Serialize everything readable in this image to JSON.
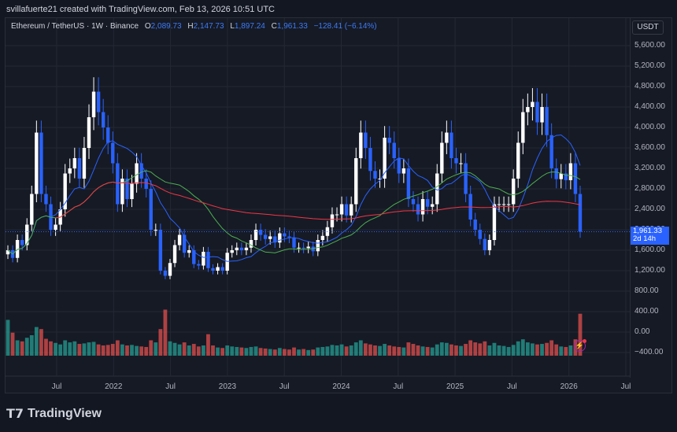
{
  "header": {
    "attribution": "svillafuerte21 created with TradingView.com, Feb 13, 2026 10:51 UTC"
  },
  "legend": {
    "symbol": "Ethereum / TetherUS · 1W · Binance",
    "o_label": "O",
    "o": "2,089.73",
    "h_label": "H",
    "h": "2,147.73",
    "l_label": "L",
    "l": "1,897.24",
    "c_label": "C",
    "c": "1,961.33",
    "change": "−128.41 (−6.14%)"
  },
  "axis": {
    "currency": "USDT",
    "y_ticks": [
      "5,600.00",
      "5,200.00",
      "4,800.00",
      "4,400.00",
      "4,000.00",
      "3,600.00",
      "3,200.00",
      "2,800.00",
      "2,400.00",
      "2,000.00",
      "1,600.00",
      "1,200.00",
      "800.00",
      "400.00",
      "0.00",
      "−400.00"
    ],
    "x_ticks": [
      "Jul",
      "2022",
      "Jul",
      "2023",
      "Jul",
      "2024",
      "Jul",
      "2025",
      "Jul",
      "2026",
      "Jul"
    ],
    "price_tag": "1,961.33",
    "countdown": "2d 14h"
  },
  "colors": {
    "up": "#ffffff",
    "down": "#2962ff",
    "vol_up": "#26a69a",
    "vol_down": "#ef5350",
    "ma_fast": "#2962ff",
    "ma_mid": "#4caf50",
    "ma_slow": "#f23645"
  },
  "footer": {
    "brand": "TradingView"
  },
  "chart_data": {
    "type": "candlestick",
    "interval": "2 points per month (approx.)",
    "ylim": [
      -400,
      5800
    ],
    "closes": [
      1600,
      1450,
      1800,
      1700,
      2100,
      2700,
      3900,
      2700,
      2500,
      2000,
      2100,
      2400,
      3100,
      3200,
      3400,
      3000,
      3600,
      4200,
      4700,
      4300,
      4000,
      3700,
      3300,
      2500,
      3000,
      2600,
      2900,
      3300,
      3000,
      2800,
      2000,
      2000,
      1200,
      1100,
      1350,
      1700,
      1900,
      1550,
      1600,
      1330,
      1300,
      1570,
      1250,
      1200,
      1270,
      1200,
      1550,
      1600,
      1650,
      1600,
      1650,
      1800,
      2000,
      1900,
      1820,
      1870,
      1750,
      1930,
      1870,
      1850,
      1650,
      1650,
      1640,
      1670,
      1580,
      1800,
      1880,
      2050,
      2300,
      2300,
      2500,
      2280,
      2500,
      3400,
      3900,
      3600,
      3150,
      3000,
      3000,
      3800,
      3700,
      3400,
      3100,
      3200,
      2600,
      2500,
      2300,
      2600,
      2450,
      2500,
      3100,
      3700,
      3900,
      3400,
      3300,
      3300,
      2700,
      2200,
      2000,
      1820,
      1600,
      1800,
      2500,
      2500,
      2500,
      2500,
      3000,
      3700,
      4300,
      4400,
      4500,
      4100,
      4400,
      3850,
      3200,
      2990,
      3100,
      2970,
      3300,
      2700,
      1961.33
    ],
    "volumes": [
      700,
      450,
      300,
      280,
      350,
      400,
      560,
      520,
      330,
      280,
      250,
      220,
      300,
      260,
      280,
      230,
      240,
      260,
      270,
      220,
      200,
      210,
      230,
      300,
      220,
      200,
      210,
      190,
      180,
      170,
      300,
      260,
      520,
      900,
      280,
      250,
      220,
      260,
      200,
      230,
      180,
      200,
      420,
      200,
      160,
      150,
      200,
      180,
      170,
      160,
      150,
      170,
      180,
      150,
      140,
      130,
      120,
      150,
      130,
      120,
      160,
      120,
      130,
      110,
      120,
      160,
      170,
      180,
      210,
      200,
      220,
      180,
      200,
      260,
      300,
      240,
      220,
      200,
      190,
      230,
      200,
      180,
      170,
      160,
      260,
      230,
      200,
      180,
      170,
      160,
      220,
      260,
      250,
      220,
      200,
      190,
      230,
      300,
      260,
      240,
      280,
      200,
      250,
      200,
      190,
      170,
      210,
      280,
      320,
      260,
      240,
      220,
      230,
      250,
      300,
      220,
      180,
      170,
      200,
      320,
      820
    ]
  }
}
